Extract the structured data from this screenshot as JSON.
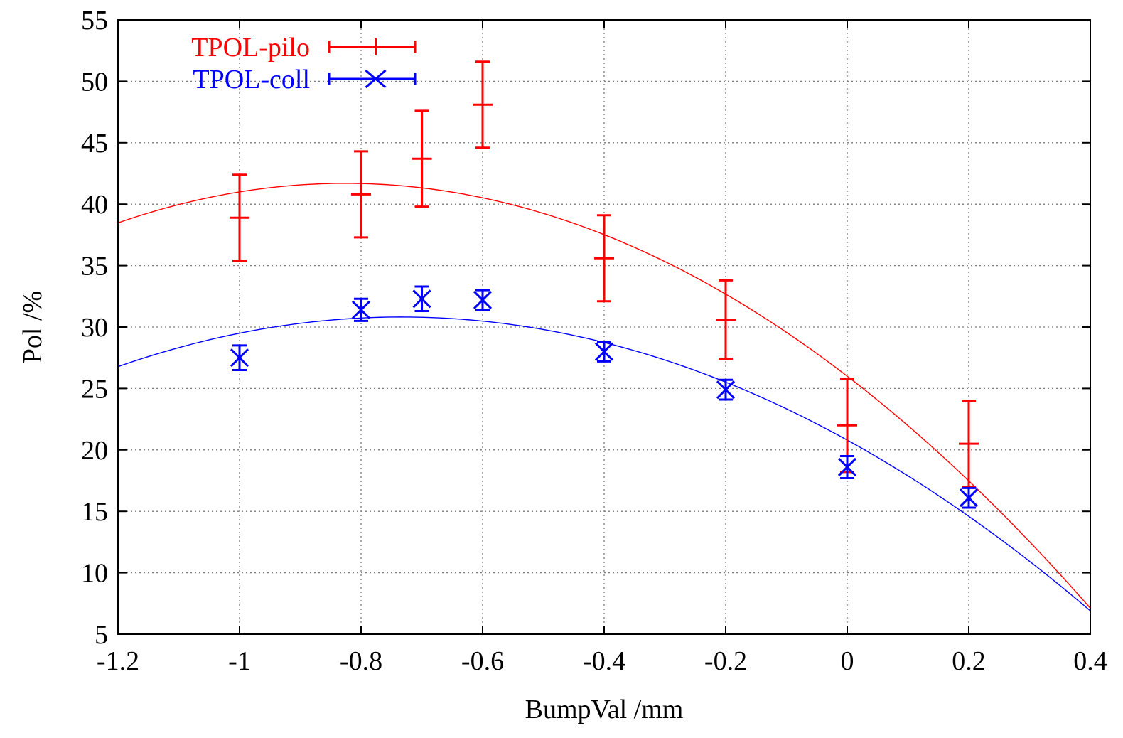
{
  "chart_data": {
    "type": "scatter",
    "xlabel": "BumpVal /mm",
    "ylabel": "Pol /%",
    "xlim": [
      -1.2,
      0.4
    ],
    "ylim": [
      5,
      55
    ],
    "xticks": [
      -1.2,
      -1,
      -0.8,
      -0.6,
      -0.4,
      -0.2,
      0,
      0.2,
      0.4
    ],
    "xtick_labels": [
      "-1.2",
      "-1",
      "-0.8",
      "-0.6",
      "-0.4",
      "-0.2",
      "0",
      "0.2",
      "0.4"
    ],
    "yticks": [
      5,
      10,
      15,
      20,
      25,
      30,
      35,
      40,
      45,
      50,
      55
    ],
    "ytick_labels": [
      "5",
      "10",
      "15",
      "20",
      "25",
      "30",
      "35",
      "40",
      "45",
      "50",
      "55"
    ],
    "grid": true,
    "legend_position": "top-left",
    "series": [
      {
        "name": "TPOL-pilo",
        "color": "#ff0000",
        "marker": "plus",
        "points": [
          {
            "x": -1.0,
            "y": 38.9,
            "err": 3.5
          },
          {
            "x": -0.8,
            "y": 40.8,
            "err": 3.5
          },
          {
            "x": -0.7,
            "y": 43.7,
            "err": 3.9
          },
          {
            "x": -0.6,
            "y": 48.1,
            "err": 3.5
          },
          {
            "x": -0.4,
            "y": 35.6,
            "err": 3.5
          },
          {
            "x": -0.2,
            "y": 30.6,
            "err": 3.2
          },
          {
            "x": 0.0,
            "y": 22.0,
            "err": 3.8
          },
          {
            "x": 0.2,
            "y": 20.5,
            "err": 3.5
          }
        ],
        "fit": {
          "type": "quadratic",
          "coeffs": [
            26.0,
            -38.0,
            -23.0
          ]
        }
      },
      {
        "name": "TPOL-coll",
        "color": "#0000ff",
        "marker": "cross",
        "points": [
          {
            "x": -1.0,
            "y": 27.5,
            "err": 1.0
          },
          {
            "x": -0.8,
            "y": 31.4,
            "err": 0.9
          },
          {
            "x": -0.7,
            "y": 32.3,
            "err": 1.0
          },
          {
            "x": -0.6,
            "y": 32.2,
            "err": 0.8
          },
          {
            "x": -0.4,
            "y": 28.0,
            "err": 0.8
          },
          {
            "x": -0.2,
            "y": 24.9,
            "err": 0.8
          },
          {
            "x": 0.0,
            "y": 18.6,
            "err": 0.9
          },
          {
            "x": 0.2,
            "y": 16.1,
            "err": 0.8
          }
        ],
        "fit": {
          "type": "quadratic",
          "coeffs": [
            20.8,
            -27.3,
            -18.6
          ]
        }
      }
    ]
  }
}
